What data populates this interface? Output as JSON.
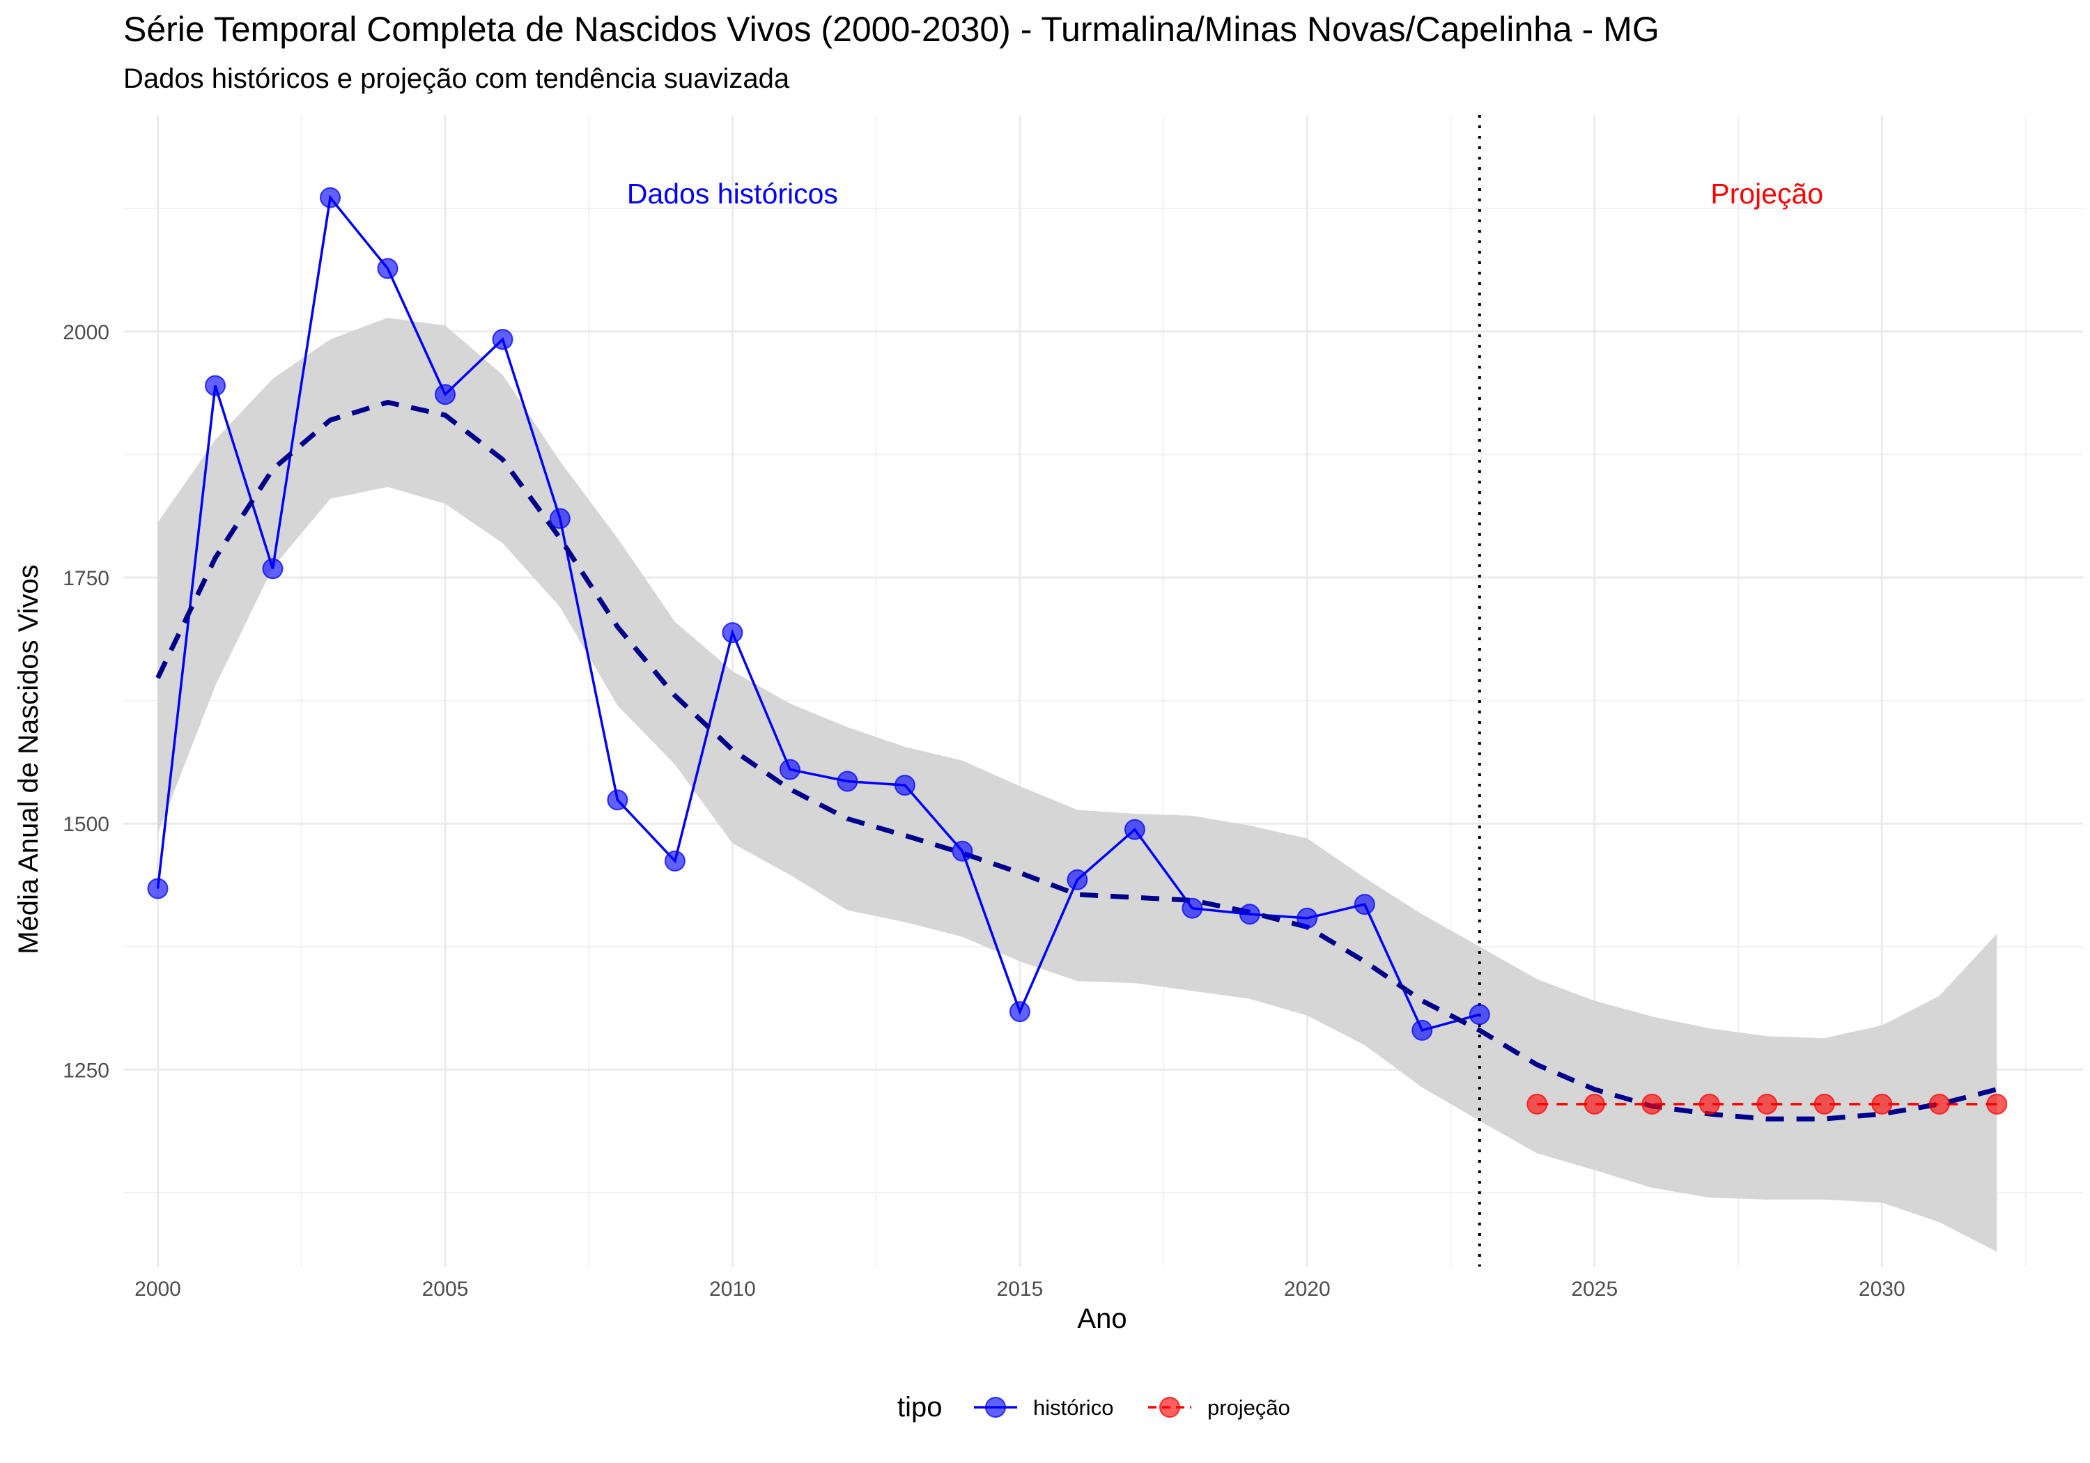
{
  "chart_data": {
    "type": "line",
    "title": "Série Temporal Completa de Nascidos Vivos (2000-2030) -  Turmalina/Minas Novas/Capelinha - MG",
    "subtitle": "Dados históricos e projeção com tendência suavizada",
    "xlabel": "Ano",
    "ylabel": "Média Anual de Nascidos Vivos",
    "xlim": [
      1999.4,
      2033.5
    ],
    "ylim": [
      1050,
      2220
    ],
    "x_ticks": [
      2000,
      2005,
      2010,
      2015,
      2020,
      2025,
      2030
    ],
    "y_ticks": [
      1250,
      1500,
      1750,
      2000
    ],
    "x_tick_labels": [
      "2000",
      "2005",
      "2010",
      "2015",
      "2020",
      "2025",
      "2030"
    ],
    "y_tick_labels": [
      "1250",
      "1500",
      "1750",
      "2000"
    ],
    "grid": true,
    "legend_position": "bottom",
    "legend_title": "tipo",
    "series": [
      {
        "name": "histórico",
        "color": "#0000FF",
        "style": "solid",
        "x": [
          2000,
          2001,
          2002,
          2003,
          2004,
          2005,
          2006,
          2007,
          2008,
          2009,
          2010,
          2011,
          2012,
          2013,
          2014,
          2015,
          2016,
          2017,
          2018,
          2019,
          2020,
          2021,
          2022,
          2023
        ],
        "y": [
          1434,
          1945,
          1759,
          2136,
          2064,
          1936,
          1992,
          1810,
          1524,
          1462,
          1694,
          1555,
          1543,
          1539,
          1472,
          1309,
          1443,
          1494,
          1414,
          1408,
          1404,
          1418,
          1290,
          1306
        ]
      },
      {
        "name": "projeção",
        "color": "#FF0000",
        "style": "dashed",
        "x": [
          2024,
          2025,
          2026,
          2027,
          2028,
          2029,
          2030,
          2031,
          2032
        ],
        "y": [
          1215,
          1215,
          1215,
          1215,
          1215,
          1215,
          1215,
          1215,
          1215
        ]
      }
    ],
    "smooth_trend": {
      "color": "#00008B",
      "style": "dashed",
      "x": [
        2000,
        2001,
        2002,
        2003,
        2004,
        2005,
        2006,
        2007,
        2008,
        2009,
        2010,
        2011,
        2012,
        2013,
        2014,
        2015,
        2016,
        2017,
        2018,
        2019,
        2020,
        2021,
        2022,
        2023,
        2024,
        2025,
        2026,
        2027,
        2028,
        2029,
        2030,
        2031,
        2032
      ],
      "y": [
        1648,
        1770,
        1860,
        1910,
        1928,
        1915,
        1870,
        1790,
        1700,
        1630,
        1575,
        1535,
        1505,
        1488,
        1470,
        1450,
        1428,
        1425,
        1422,
        1410,
        1395,
        1360,
        1320,
        1290,
        1255,
        1230,
        1213,
        1205,
        1200,
        1200,
        1205,
        1215,
        1230
      ],
      "ci_lower": [
        1490,
        1640,
        1760,
        1830,
        1842,
        1825,
        1785,
        1720,
        1620,
        1560,
        1480,
        1448,
        1412,
        1400,
        1385,
        1360,
        1340,
        1338,
        1330,
        1322,
        1305,
        1275,
        1232,
        1198,
        1165,
        1148,
        1130,
        1120,
        1118,
        1118,
        1115,
        1095,
        1065
      ],
      "ci_upper": [
        1806,
        1890,
        1952,
        1992,
        2014,
        2006,
        1956,
        1868,
        1790,
        1705,
        1655,
        1622,
        1598,
        1578,
        1564,
        1538,
        1514,
        1510,
        1508,
        1498,
        1485,
        1445,
        1408,
        1375,
        1342,
        1320,
        1304,
        1292,
        1284,
        1282,
        1295,
        1325,
        1388
      ],
      "ci_color": "#D6D6D6"
    },
    "vline": {
      "x": 2023,
      "style": "dotted",
      "color": "#000000"
    },
    "annotations": [
      {
        "text": "Dados históricos",
        "x": 2010,
        "y": 2140,
        "color": "#0000FF"
      },
      {
        "text": "Projeção",
        "x": 2028,
        "y": 2140,
        "color": "#FF0000"
      }
    ]
  }
}
